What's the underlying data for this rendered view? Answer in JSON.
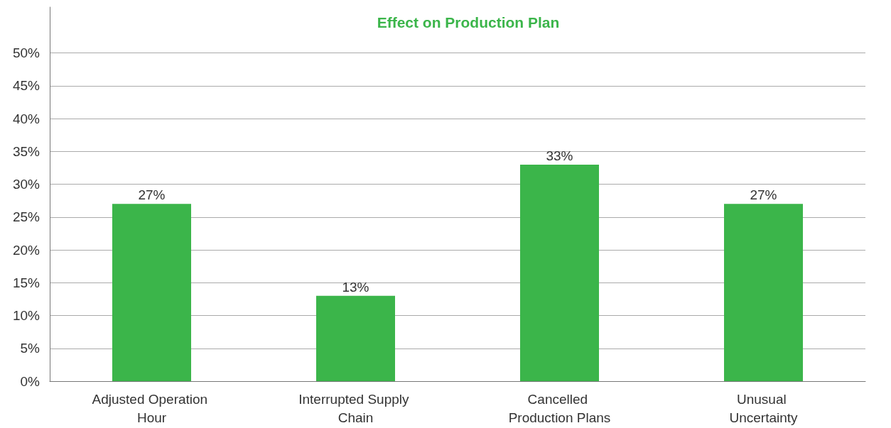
{
  "chart_data": {
    "type": "bar",
    "title": "Effect on Production Plan",
    "categories": [
      "Adjusted Operation Hour",
      "Interrupted Supply Chain",
      "Cancelled Production Plans",
      "Unusual Uncertainty"
    ],
    "values": [
      27,
      13,
      33,
      27
    ],
    "value_labels": [
      "27%",
      "13%",
      "33%",
      "27%"
    ],
    "color": "#3bb54a",
    "ylim": [
      0,
      57
    ],
    "yticks": [
      {
        "value": 0,
        "label": "0%"
      },
      {
        "value": 5,
        "label": "5%"
      },
      {
        "value": 10,
        "label": "10%"
      },
      {
        "value": 15,
        "label": "15%"
      },
      {
        "value": 20,
        "label": "20%"
      },
      {
        "value": 25,
        "label": "25%"
      },
      {
        "value": 30,
        "label": "30%"
      },
      {
        "value": 35,
        "label": "35%"
      },
      {
        "value": 40,
        "label": "40%"
      },
      {
        "value": 45,
        "label": "45%"
      },
      {
        "value": 50,
        "label": "50%"
      }
    ],
    "grid": "y"
  }
}
